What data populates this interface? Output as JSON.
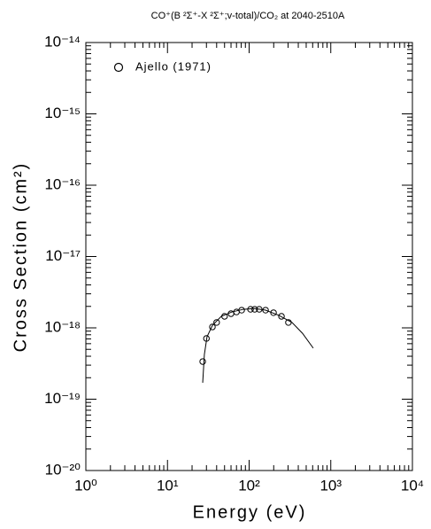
{
  "chart_data": {
    "type": "scatter",
    "title": "CO⁺(B ²Σ⁺-X ²Σ⁺;v-total)/CO₂ at 2040-2510A",
    "x_label": "Energy (eV)",
    "y_label": "Cross Section (cm²)",
    "xscale": "log",
    "yscale": "log",
    "xlim": [
      1,
      10000
    ],
    "ylim": [
      1e-20,
      1e-14
    ],
    "xticks": [
      {
        "value": 1,
        "label": "10⁰"
      },
      {
        "value": 10,
        "label": "10¹"
      },
      {
        "value": 100,
        "label": "10²"
      },
      {
        "value": 1000,
        "label": "10³"
      },
      {
        "value": 10000,
        "label": "10⁴"
      }
    ],
    "yticks": [
      {
        "value": 1e-20,
        "label": "10⁻²⁰"
      },
      {
        "value": 1e-19,
        "label": "10⁻¹⁹"
      },
      {
        "value": 1e-18,
        "label": "10⁻¹⁸"
      },
      {
        "value": 1e-17,
        "label": "10⁻¹⁷"
      },
      {
        "value": 1e-16,
        "label": "10⁻¹⁶"
      },
      {
        "value": 1e-15,
        "label": "10⁻¹⁵"
      },
      {
        "value": 1e-14,
        "label": "10⁻¹⁴"
      }
    ],
    "legend_position": "upper left",
    "series": [
      {
        "name": "Ajello (1971)",
        "marker": "circle-open",
        "color": "#000000",
        "x": [
          27,
          30,
          35.5,
          40,
          50,
          60,
          70,
          81,
          104,
          117,
          133,
          159,
          199,
          249,
          303
        ],
        "values": [
          3.37e-19,
          7.1e-19,
          1.03e-18,
          1.19e-18,
          1.45e-18,
          1.58e-18,
          1.67e-18,
          1.77e-18,
          1.82e-18,
          1.82e-18,
          1.82e-18,
          1.77e-18,
          1.63e-18,
          1.45e-18,
          1.19e-18
        ]
      },
      {
        "marker": "line",
        "color": "#000000",
        "x": [
          27,
          28.3,
          30.5,
          35.5,
          45.5,
          61.5,
          85,
          117,
          159,
          230,
          335,
          450,
          610
        ],
        "values": [
          1.7e-19,
          4.24e-19,
          7.5e-19,
          1.08e-18,
          1.45e-18,
          1.67e-18,
          1.82e-18,
          1.87e-18,
          1.77e-18,
          1.5e-18,
          1.19e-18,
          8.4e-19,
          5.2e-19
        ]
      }
    ]
  }
}
